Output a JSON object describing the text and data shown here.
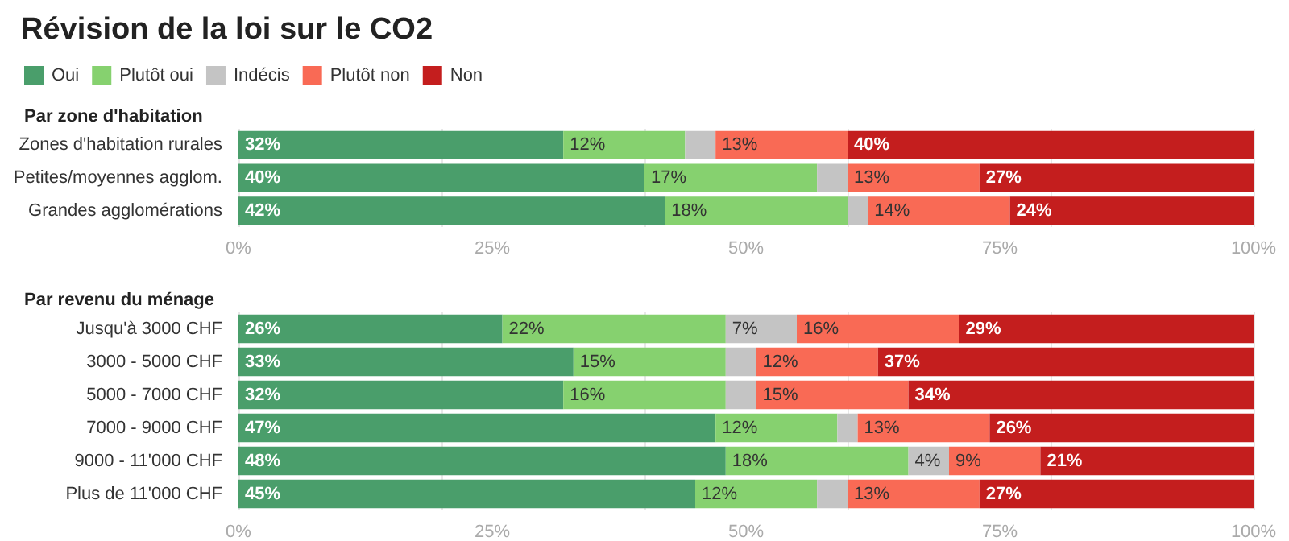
{
  "chart_data": [
    {
      "type": "bar",
      "title": "Révision de la loi sur le CO2",
      "subtitle": "Par zone d'habitation",
      "orientation": "horizontal",
      "stacked": true,
      "legend": "top left",
      "grid": "x",
      "categories": [
        "Zones d'habitation rurales",
        "Petites/moyennes agglom.",
        "Grandes agglomérations"
      ],
      "xlim": [
        0,
        100
      ],
      "xticks": [
        {
          "value": 0,
          "label": "0%"
        },
        {
          "value": 25,
          "label": "25%"
        },
        {
          "value": 50,
          "label": "50%"
        },
        {
          "value": 75,
          "label": "75%"
        },
        {
          "value": 100,
          "label": "100%"
        }
      ],
      "series": [
        {
          "name": "Oui",
          "color": "#4a9e6b",
          "values": [
            32,
            40,
            42
          ],
          "value_labels": [
            "32%",
            "40%",
            "42%"
          ]
        },
        {
          "name": "Plutôt oui",
          "color": "#86d16f",
          "values": [
            12,
            17,
            18
          ],
          "value_labels": [
            "12%",
            "17%",
            "18%"
          ]
        },
        {
          "name": "Indécis",
          "color": "#c4c4c4",
          "values": [
            3,
            3,
            2
          ],
          "value_labels": [
            null,
            null,
            null
          ]
        },
        {
          "name": "Plutôt non",
          "color": "#f96a55",
          "values": [
            13,
            13,
            14
          ],
          "value_labels": [
            "13%",
            "13%",
            "14%"
          ]
        },
        {
          "name": "Non",
          "color": "#c41e1e",
          "values": [
            40,
            27,
            24
          ],
          "value_labels": [
            "40%",
            "27%",
            "24%"
          ]
        }
      ]
    },
    {
      "type": "bar",
      "subtitle": "Par revenu du ménage",
      "orientation": "horizontal",
      "stacked": true,
      "legend": false,
      "grid": "x",
      "categories": [
        "Jusqu'à 3000 CHF",
        "3000 - 5000 CHF",
        "5000 - 7000 CHF",
        "7000 - 9000 CHF",
        "9000 - 11'000 CHF",
        "Plus de 11'000 CHF"
      ],
      "xlim": [
        0,
        100
      ],
      "xticks": [
        {
          "value": 0,
          "label": "0%"
        },
        {
          "value": 25,
          "label": "25%"
        },
        {
          "value": 50,
          "label": "50%"
        },
        {
          "value": 75,
          "label": "75%"
        },
        {
          "value": 100,
          "label": "100%"
        }
      ],
      "series": [
        {
          "color": "#4a9e6b",
          "values": [
            26,
            33,
            32,
            47,
            48,
            45
          ],
          "value_labels": [
            "26%",
            "33%",
            "32%",
            "47%",
            "48%",
            "45%"
          ]
        },
        {
          "color": "#86d16f",
          "values": [
            22,
            15,
            16,
            12,
            18,
            12
          ],
          "value_labels": [
            "22%",
            "15%",
            "16%",
            "12%",
            "18%",
            "12%"
          ]
        },
        {
          "color": "#c4c4c4",
          "values": [
            7,
            3,
            3,
            2,
            4,
            3
          ],
          "value_labels": [
            "7%",
            null,
            null,
            null,
            "4%",
            null
          ]
        },
        {
          "color": "#f96a55",
          "values": [
            16,
            12,
            15,
            13,
            9,
            13
          ],
          "value_labels": [
            "16%",
            "12%",
            "15%",
            "13%",
            "9%",
            "13%"
          ]
        },
        {
          "color": "#c41e1e",
          "values": [
            29,
            37,
            34,
            26,
            21,
            27
          ],
          "value_labels": [
            "29%",
            "37%",
            "34%",
            "26%",
            "21%",
            "27%"
          ]
        }
      ]
    }
  ]
}
